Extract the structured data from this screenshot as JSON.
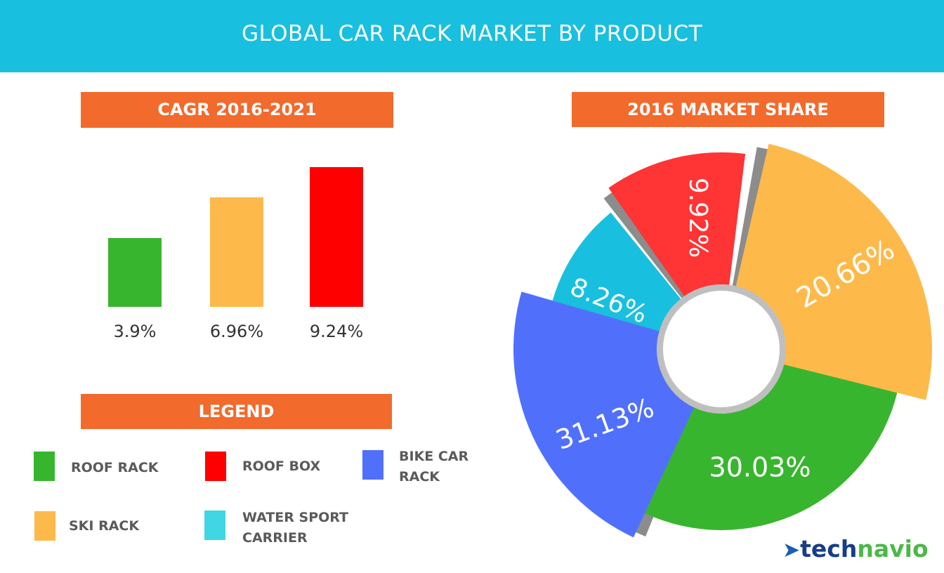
{
  "title": "GLOBAL CAR RACK MARKET BY PRODUCT",
  "colors": {
    "header": "#19BFDE",
    "section": "#F26A2C",
    "roof_rack": "#38B52E",
    "ski_rack": "#FDBA4A",
    "roof_box": "#FF0000",
    "bike_car_rack": "#5070FB",
    "water_sport_carrier": "#19BFDE"
  },
  "chart_data": [
    {
      "type": "bar",
      "title": "CAGR 2016-2021",
      "categories": [
        "Roof rack",
        "Ski rack",
        "Roof box"
      ],
      "values": [
        3.9,
        6.96,
        9.24
      ],
      "data_labels": [
        "3.9%",
        "6.96%",
        "9.24%"
      ],
      "colors": [
        "#38B52E",
        "#FDBA4A",
        "#FF0000"
      ]
    },
    {
      "type": "pie",
      "title": "2016 MARKET SHARE",
      "categories": [
        "Ski rack",
        "Roof rack",
        "Bike car rack",
        "Water sport carrier",
        "Roof box"
      ],
      "values": [
        20.66,
        30.03,
        31.13,
        8.26,
        9.92
      ],
      "data_labels": [
        "20.66%",
        "30.03%",
        "31.13%",
        "8.26%",
        "9.92%"
      ],
      "colors": [
        "#FDBA4A",
        "#38B52E",
        "#5070FB",
        "#19BFDE",
        "#FF3434"
      ],
      "donut": true
    }
  ],
  "legend": {
    "title": "LEGEND",
    "items": [
      {
        "label": "ROOF RACK",
        "color": "#38B52E"
      },
      {
        "label": "ROOF BOX",
        "color": "#FF0000"
      },
      {
        "label": "BIKE CAR RACK",
        "color": "#5070FB"
      },
      {
        "label": "SKI RACK",
        "color": "#FDBA4A"
      },
      {
        "label": "WATER SPORT CARRIER",
        "color": "#40D6E4"
      }
    ]
  },
  "logo": {
    "part1": "tech",
    "part2": "navio"
  }
}
